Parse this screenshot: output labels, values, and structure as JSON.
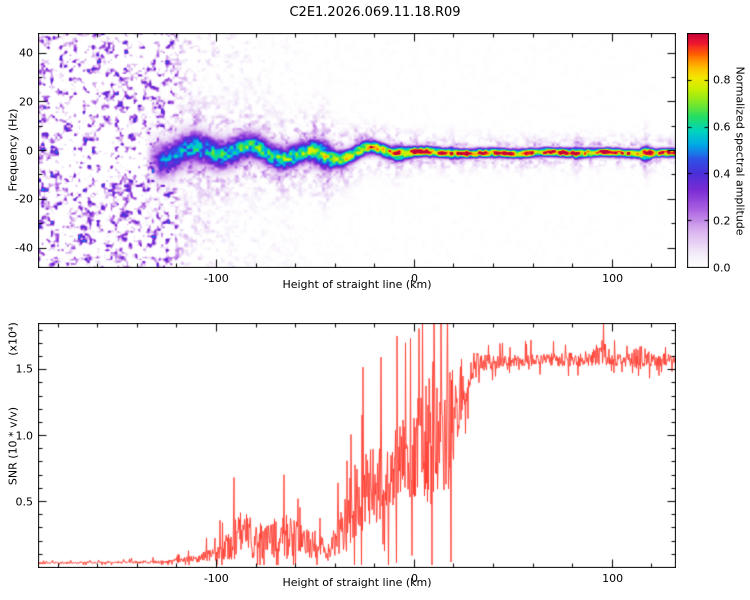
{
  "chart_data": [
    {
      "type": "heatmap",
      "title": "C2E1.2026.069.11.18.R09",
      "xlabel": "Height of straight line (km)",
      "ylabel": "Frequency (Hz)",
      "xlim": [
        -190,
        132
      ],
      "ylim": [
        -48,
        48
      ],
      "xticks": [
        "-100",
        "0",
        "100"
      ],
      "yticks": [
        "-40",
        "-20",
        "0",
        "20",
        "40"
      ],
      "x_minor_step": 20,
      "y_minor_step": 10,
      "grid": false,
      "colorbar": {
        "label": "Normalized spectral amplitude",
        "ticks": [
          "0.0",
          "0.2",
          "0.4",
          "0.6",
          "0.8"
        ],
        "range": [
          0,
          1
        ],
        "stops": [
          [
            0,
            "#ffffff"
          ],
          [
            0.06,
            "#f3eaf9"
          ],
          [
            0.15,
            "#dcb6f0"
          ],
          [
            0.25,
            "#a85fe0"
          ],
          [
            0.33,
            "#7a2bd4"
          ],
          [
            0.4,
            "#4b2fd8"
          ],
          [
            0.46,
            "#2e52e6"
          ],
          [
            0.52,
            "#00a8e8"
          ],
          [
            0.58,
            "#00d4c0"
          ],
          [
            0.64,
            "#22dd66"
          ],
          [
            0.7,
            "#7ee827"
          ],
          [
            0.76,
            "#c8f000"
          ],
          [
            0.81,
            "#f4e800"
          ],
          [
            0.86,
            "#ffb400"
          ],
          [
            0.91,
            "#ff6000"
          ],
          [
            0.955,
            "#f01830"
          ],
          [
            1,
            "#c4003a"
          ]
        ]
      },
      "signal_model": {
        "description": "Full-band purple speckle noise below ~-120 km collapsing into a narrow spectral line near 0 Hz; line amplitude grows toward ~1.0 (red core with yellow/green/cyan/purple fringes) above ~-20 km and stays saturated to +130 km.",
        "noise_envelope": [
          [
            -192,
            1
          ],
          [
            -124,
            1
          ],
          [
            -116,
            0.35
          ],
          [
            -100,
            0.2
          ],
          [
            -80,
            0.12
          ],
          [
            -60,
            0.06
          ],
          [
            -40,
            0.03
          ],
          [
            132,
            0.02
          ]
        ],
        "band_center_hz": -1,
        "band_halfwidth_hz": [
          [
            -192,
            5
          ],
          [
            -130,
            5
          ],
          [
            -90,
            4
          ],
          [
            -55,
            3
          ],
          [
            -25,
            2
          ],
          [
            -5,
            1.6
          ],
          [
            20,
            1.3
          ],
          [
            132,
            1.2
          ]
        ],
        "band_amplitude": [
          [
            -192,
            0
          ],
          [
            -136,
            0
          ],
          [
            -128,
            0.45
          ],
          [
            -110,
            0.55
          ],
          [
            -80,
            0.62
          ],
          [
            -50,
            0.7
          ],
          [
            -30,
            0.8
          ],
          [
            -18,
            0.92
          ],
          [
            -5,
            0.97
          ],
          [
            132,
            0.97
          ]
        ],
        "seed": 7
      }
    },
    {
      "type": "line",
      "series": [
        {
          "name": "SNR",
          "color": "#ff3c30"
        }
      ],
      "xlabel": "Height of straight line (km)",
      "ylabel": "SNR (10 * v/v)",
      "scale_note": "(x10⁴)",
      "xlim": [
        -190,
        132
      ],
      "ylim": [
        0,
        1.85
      ],
      "xticks": [
        "-100",
        "0",
        "100"
      ],
      "yticks": [
        "0.5",
        "1.0",
        "1.5"
      ],
      "x_minor_step": 20,
      "y_minor_step": 0.1,
      "grid": false,
      "envelope_note": "columns: [height_km, mean_SNR_x1e4, noise_amplitude]",
      "envelope": [
        [
          -190,
          0.03,
          0.008
        ],
        [
          -150,
          0.035,
          0.01
        ],
        [
          -125,
          0.04,
          0.012
        ],
        [
          -112,
          0.06,
          0.025
        ],
        [
          -102,
          0.09,
          0.05
        ],
        [
          -94,
          0.16,
          0.1
        ],
        [
          -88,
          0.24,
          0.2
        ],
        [
          -82,
          0.22,
          0.16
        ],
        [
          -74,
          0.2,
          0.14
        ],
        [
          -66,
          0.24,
          0.18
        ],
        [
          -58,
          0.2,
          0.13
        ],
        [
          -50,
          0.17,
          0.11
        ],
        [
          -43,
          0.12,
          0.08
        ],
        [
          -37,
          0.25,
          0.18
        ],
        [
          -31,
          0.45,
          0.3
        ],
        [
          -25,
          0.55,
          0.32
        ],
        [
          -18,
          0.62,
          0.3
        ],
        [
          -12,
          0.72,
          0.3
        ],
        [
          -6,
          0.85,
          0.28
        ],
        [
          -1,
          0.8,
          0.3
        ],
        [
          4,
          0.95,
          0.45
        ],
        [
          8,
          1.05,
          0.65
        ],
        [
          13,
          0.95,
          0.6
        ],
        [
          18,
          1.05,
          0.45
        ],
        [
          23,
          1.3,
          0.3
        ],
        [
          28,
          1.48,
          0.15
        ],
        [
          33,
          1.55,
          0.07
        ],
        [
          45,
          1.56,
          0.045
        ],
        [
          60,
          1.57,
          0.045
        ],
        [
          75,
          1.57,
          0.05
        ],
        [
          90,
          1.58,
          0.06
        ],
        [
          95,
          1.63,
          0.11
        ],
        [
          100,
          1.57,
          0.05
        ],
        [
          108,
          1.57,
          0.05
        ],
        [
          114,
          1.6,
          0.1
        ],
        [
          120,
          1.57,
          0.05
        ],
        [
          132,
          1.57,
          0.045
        ]
      ],
      "seed": 42
    }
  ]
}
